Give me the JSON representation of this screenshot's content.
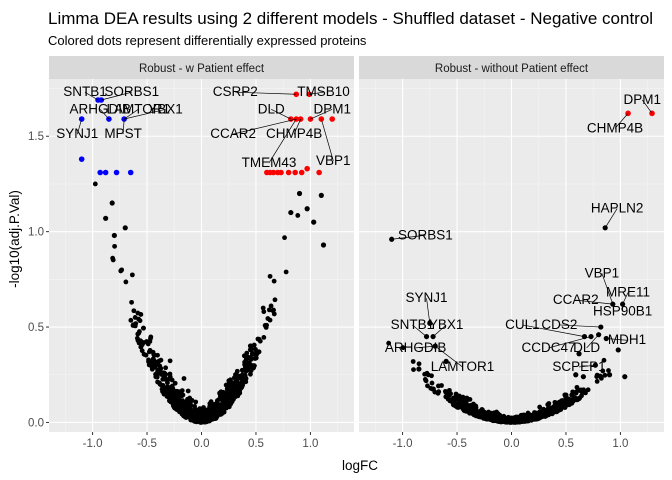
{
  "title": "Limma DEA results using 2 different models - Shuffled dataset - Negative control",
  "subtitle": "Colored dots represent differentially expressed proteins",
  "chart_data": {
    "type": "scatter",
    "xlabel": "logFC",
    "ylabel": "-log10(adj.P.Val)",
    "xlim": [
      -1.4,
      1.4
    ],
    "ylim": [
      -0.05,
      1.8
    ],
    "xticks": [
      -1.0,
      -0.5,
      0.0,
      0.5,
      1.0
    ],
    "xtick_labels": [
      "-1.0",
      "-0.5",
      "0.0",
      "0.5",
      "1.0"
    ],
    "yticks": [
      0.0,
      0.5,
      1.0,
      1.5
    ],
    "ytick_labels": [
      "0.0",
      "0.5",
      "1.0",
      "1.5"
    ],
    "grid": true,
    "colors": {
      "panel_bg": "#ebebeb",
      "strip_bg": "#d9d9d9",
      "grid_major": "#ffffff",
      "not_de": "#000000",
      "de_up": "#ff0000",
      "de_down": "#0000ff"
    },
    "panels": [
      {
        "strip": "Robust - w Patient effect",
        "highlighted_points": [
          {
            "x": -0.95,
            "y": 1.69,
            "group": "down"
          },
          {
            "x": -0.92,
            "y": 1.69,
            "group": "down"
          },
          {
            "x": -1.1,
            "y": 1.59,
            "group": "down"
          },
          {
            "x": -0.85,
            "y": 1.59,
            "group": "down"
          },
          {
            "x": -0.71,
            "y": 1.59,
            "group": "down"
          },
          {
            "x": -1.1,
            "y": 1.38,
            "group": "down"
          },
          {
            "x": -0.93,
            "y": 1.31,
            "group": "down"
          },
          {
            "x": -0.88,
            "y": 1.31,
            "group": "down"
          },
          {
            "x": -0.78,
            "y": 1.31,
            "group": "down"
          },
          {
            "x": -0.65,
            "y": 1.31,
            "group": "down"
          },
          {
            "x": 0.87,
            "y": 1.72,
            "group": "up"
          },
          {
            "x": 0.99,
            "y": 1.72,
            "group": "up"
          },
          {
            "x": 0.82,
            "y": 1.59,
            "group": "up"
          },
          {
            "x": 0.87,
            "y": 1.59,
            "group": "up"
          },
          {
            "x": 0.91,
            "y": 1.59,
            "group": "up"
          },
          {
            "x": 1.0,
            "y": 1.59,
            "group": "up"
          },
          {
            "x": 1.1,
            "y": 1.59,
            "group": "up"
          },
          {
            "x": 1.2,
            "y": 1.59,
            "group": "up"
          },
          {
            "x": 0.6,
            "y": 1.31,
            "group": "up"
          },
          {
            "x": 0.63,
            "y": 1.31,
            "group": "up"
          },
          {
            "x": 0.66,
            "y": 1.31,
            "group": "up"
          },
          {
            "x": 0.7,
            "y": 1.31,
            "group": "up"
          },
          {
            "x": 0.73,
            "y": 1.31,
            "group": "up"
          },
          {
            "x": 0.8,
            "y": 1.31,
            "group": "up"
          },
          {
            "x": 0.86,
            "y": 1.31,
            "group": "up"
          },
          {
            "x": 0.92,
            "y": 1.31,
            "group": "up"
          },
          {
            "x": 0.97,
            "y": 1.33,
            "group": "up"
          },
          {
            "x": 1.08,
            "y": 1.31,
            "group": "up"
          }
        ],
        "outlier_points": [
          {
            "x": 1.1,
            "y": 1.19
          },
          {
            "x": 1.12,
            "y": 0.93
          },
          {
            "x": 1.03,
            "y": 1.05
          },
          {
            "x": 0.97,
            "y": 1.12
          },
          {
            "x": -0.88,
            "y": 1.07
          },
          {
            "x": -0.8,
            "y": 0.98
          },
          {
            "x": -0.7,
            "y": 1.02
          },
          {
            "x": -0.82,
            "y": 1.15
          },
          {
            "x": 0.9,
            "y": 1.2
          },
          {
            "x": 0.82,
            "y": 1.1
          }
        ],
        "labels": [
          {
            "text": "SNTB1",
            "x": -0.95,
            "y": 1.69,
            "lx": -1.07,
            "ly": 1.71
          },
          {
            "text": "SORBS1",
            "x": -0.92,
            "y": 1.69,
            "lx": -0.64,
            "ly": 1.71
          },
          {
            "text": "CSRP2",
            "x": 0.87,
            "y": 1.72,
            "lx": 0.31,
            "ly": 1.71
          },
          {
            "text": "TMSB10",
            "x": 0.99,
            "y": 1.72,
            "lx": 1.12,
            "ly": 1.71
          },
          {
            "text": "ARHGDIB",
            "x": -0.85,
            "y": 1.59,
            "lx": -0.93,
            "ly": 1.62
          },
          {
            "text": "LAMTOR1",
            "x": -0.71,
            "y": 1.59,
            "lx": -0.58,
            "ly": 1.62
          },
          {
            "text": "YBX1",
            "x": -0.71,
            "y": 1.59,
            "lx": -0.33,
            "ly": 1.62
          },
          {
            "text": "DLD",
            "x": 0.82,
            "y": 1.59,
            "lx": 0.64,
            "ly": 1.62
          },
          {
            "text": "DPM1",
            "x": 1.0,
            "y": 1.59,
            "lx": 1.2,
            "ly": 1.62
          },
          {
            "text": "SYNJ1",
            "x": -1.1,
            "y": 1.59,
            "lx": -1.14,
            "ly": 1.49
          },
          {
            "text": "MPST",
            "x": -0.71,
            "y": 1.59,
            "lx": -0.72,
            "ly": 1.49
          },
          {
            "text": "CCAR2",
            "x": 0.87,
            "y": 1.59,
            "lx": 0.29,
            "ly": 1.49
          },
          {
            "text": "CHMP4B",
            "x": 0.91,
            "y": 1.59,
            "lx": 0.85,
            "ly": 1.49
          },
          {
            "text": "TMEM43",
            "x": 0.87,
            "y": 1.59,
            "lx": 0.62,
            "ly": 1.34
          },
          {
            "text": "VBP1",
            "x": 1.1,
            "y": 1.59,
            "lx": 1.21,
            "ly": 1.35
          }
        ]
      },
      {
        "strip": "Robust - without Patient effect",
        "highlighted_points": [
          {
            "x": 1.07,
            "y": 1.62,
            "group": "up"
          },
          {
            "x": 1.29,
            "y": 1.62,
            "group": "up"
          }
        ],
        "outlier_points": [
          {
            "x": -1.1,
            "y": 0.96
          },
          {
            "x": 0.86,
            "y": 1.02
          },
          {
            "x": 0.93,
            "y": 0.62
          },
          {
            "x": 1.02,
            "y": 0.62
          },
          {
            "x": -0.75,
            "y": 0.52
          },
          {
            "x": -0.78,
            "y": 0.45
          },
          {
            "x": -0.72,
            "y": 0.45
          },
          {
            "x": -0.7,
            "y": 0.4
          },
          {
            "x": -0.85,
            "y": 0.28
          },
          {
            "x": -0.6,
            "y": 0.32
          },
          {
            "x": 0.67,
            "y": 0.45
          },
          {
            "x": 0.73,
            "y": 0.45
          },
          {
            "x": 0.82,
            "y": 0.5
          },
          {
            "x": 0.8,
            "y": 0.46
          },
          {
            "x": 0.87,
            "y": 0.44
          },
          {
            "x": 0.62,
            "y": 0.36
          },
          {
            "x": 0.77,
            "y": 0.3
          },
          {
            "x": 0.66,
            "y": 0.24
          },
          {
            "x": 0.59,
            "y": 0.25
          },
          {
            "x": 0.9,
            "y": 0.25
          },
          {
            "x": 1.04,
            "y": 0.24
          },
          {
            "x": 0.98,
            "y": 0.38
          }
        ],
        "labels": [
          {
            "text": "DPM1",
            "x": 1.29,
            "y": 1.62,
            "lx": 1.2,
            "ly": 1.67
          },
          {
            "text": "CHMP4B",
            "x": 1.07,
            "y": 1.62,
            "lx": 0.95,
            "ly": 1.52
          },
          {
            "text": "HAPLN2",
            "x": 0.86,
            "y": 1.02,
            "lx": 0.97,
            "ly": 1.1
          },
          {
            "text": "SORBS1",
            "x": -1.1,
            "y": 0.96,
            "lx": -0.79,
            "ly": 0.96
          },
          {
            "text": "VBP1",
            "x": 0.93,
            "y": 0.62,
            "lx": 0.83,
            "ly": 0.76
          },
          {
            "text": "MRE11",
            "x": 1.02,
            "y": 0.62,
            "lx": 1.07,
            "ly": 0.66
          },
          {
            "text": "SYNJ1",
            "x": -0.75,
            "y": 0.52,
            "lx": -0.78,
            "ly": 0.63
          },
          {
            "text": "CCAR2",
            "x": 0.93,
            "y": 0.62,
            "lx": 0.59,
            "ly": 0.62
          },
          {
            "text": "HSP90B1",
            "x": 1.02,
            "y": 0.62,
            "lx": 1.02,
            "ly": 0.56
          },
          {
            "text": "SNTB1",
            "x": -0.78,
            "y": 0.45,
            "lx": -0.91,
            "ly": 0.49
          },
          {
            "text": "YBX1",
            "x": -0.72,
            "y": 0.45,
            "lx": -0.6,
            "ly": 0.49
          },
          {
            "text": "CUL1",
            "x": 0.67,
            "y": 0.45,
            "lx": 0.1,
            "ly": 0.49
          },
          {
            "text": "CDS2",
            "x": 0.82,
            "y": 0.5,
            "lx": 0.44,
            "ly": 0.49
          },
          {
            "text": "MDH1",
            "x": 0.87,
            "y": 0.44,
            "lx": 1.06,
            "ly": 0.41
          },
          {
            "text": "ARHGDIB",
            "x": -0.7,
            "y": 0.4,
            "lx": -0.88,
            "ly": 0.37
          },
          {
            "text": "CCDC47",
            "x": 0.73,
            "y": 0.45,
            "lx": 0.34,
            "ly": 0.37
          },
          {
            "text": "DLD",
            "x": 0.8,
            "y": 0.46,
            "lx": 0.69,
            "ly": 0.37
          },
          {
            "text": "LAMTOR1",
            "x": -0.7,
            "y": 0.4,
            "lx": -0.45,
            "ly": 0.27
          },
          {
            "text": "SCPEP1",
            "x": 0.77,
            "y": 0.3,
            "lx": 0.62,
            "ly": 0.27
          }
        ]
      }
    ]
  }
}
